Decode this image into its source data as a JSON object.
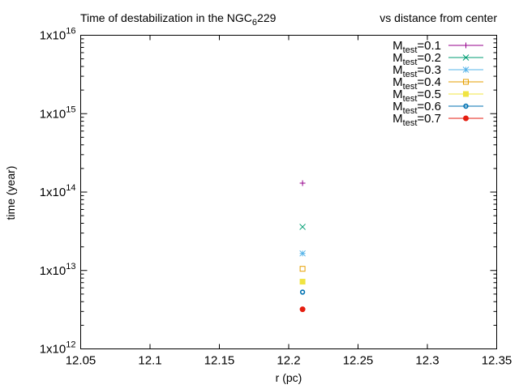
{
  "chart_data": {
    "type": "scatter",
    "title": {
      "pre": "Time of destabilization in the NGC",
      "sub": "6",
      "post": "229",
      "right": "vs distance from center"
    },
    "xlabel": "r (pc)",
    "ylabel": "time (year)",
    "xlim": [
      12.05,
      12.35
    ],
    "ylim": [
      1000000000000.0,
      1e+16
    ],
    "yscale": "log",
    "x_ticks": [
      "12.05",
      "12.1",
      "12.15",
      "12.2",
      "12.25",
      "12.3",
      "12.35"
    ],
    "y_ticks": [
      {
        "mant": "1x10",
        "exp": "12"
      },
      {
        "mant": "1x10",
        "exp": "13"
      },
      {
        "mant": "1x10",
        "exp": "14"
      },
      {
        "mant": "1x10",
        "exp": "15"
      },
      {
        "mant": "1x10",
        "exp": "16"
      }
    ],
    "legend_position": "top-right",
    "grid": false,
    "series": [
      {
        "name": {
          "main": "M",
          "sub": "test",
          "value": "=0.1"
        },
        "color": "#94008b",
        "marker": "plus",
        "x": [
          12.21
        ],
        "y": [
          130000000000000.0
        ]
      },
      {
        "name": {
          "main": "M",
          "sub": "test",
          "value": "=0.2"
        },
        "color": "#009e73",
        "marker": "cross",
        "x": [
          12.21
        ],
        "y": [
          36000000000000.0
        ]
      },
      {
        "name": {
          "main": "M",
          "sub": "test",
          "value": "=0.3"
        },
        "color": "#56b4e9",
        "marker": "star",
        "x": [
          12.21
        ],
        "y": [
          16500000000000.0
        ]
      },
      {
        "name": {
          "main": "M",
          "sub": "test",
          "value": "=0.4"
        },
        "color": "#e69f00",
        "marker": "open-square",
        "x": [
          12.21
        ],
        "y": [
          10500000000000.0
        ]
      },
      {
        "name": {
          "main": "M",
          "sub": "test",
          "value": "=0.5"
        },
        "color": "#f0e442",
        "marker": "filled-square",
        "x": [
          12.21
        ],
        "y": [
          7200000000000.0
        ]
      },
      {
        "name": {
          "main": "M",
          "sub": "test",
          "value": "=0.6"
        },
        "color": "#0072b2",
        "marker": "open-circle",
        "x": [
          12.21
        ],
        "y": [
          5300000000000.0
        ]
      },
      {
        "name": {
          "main": "M",
          "sub": "test",
          "value": "=0.7"
        },
        "color": "#e51e10",
        "marker": "filled-circle",
        "x": [
          12.21
        ],
        "y": [
          3200000000000.0
        ]
      }
    ]
  }
}
